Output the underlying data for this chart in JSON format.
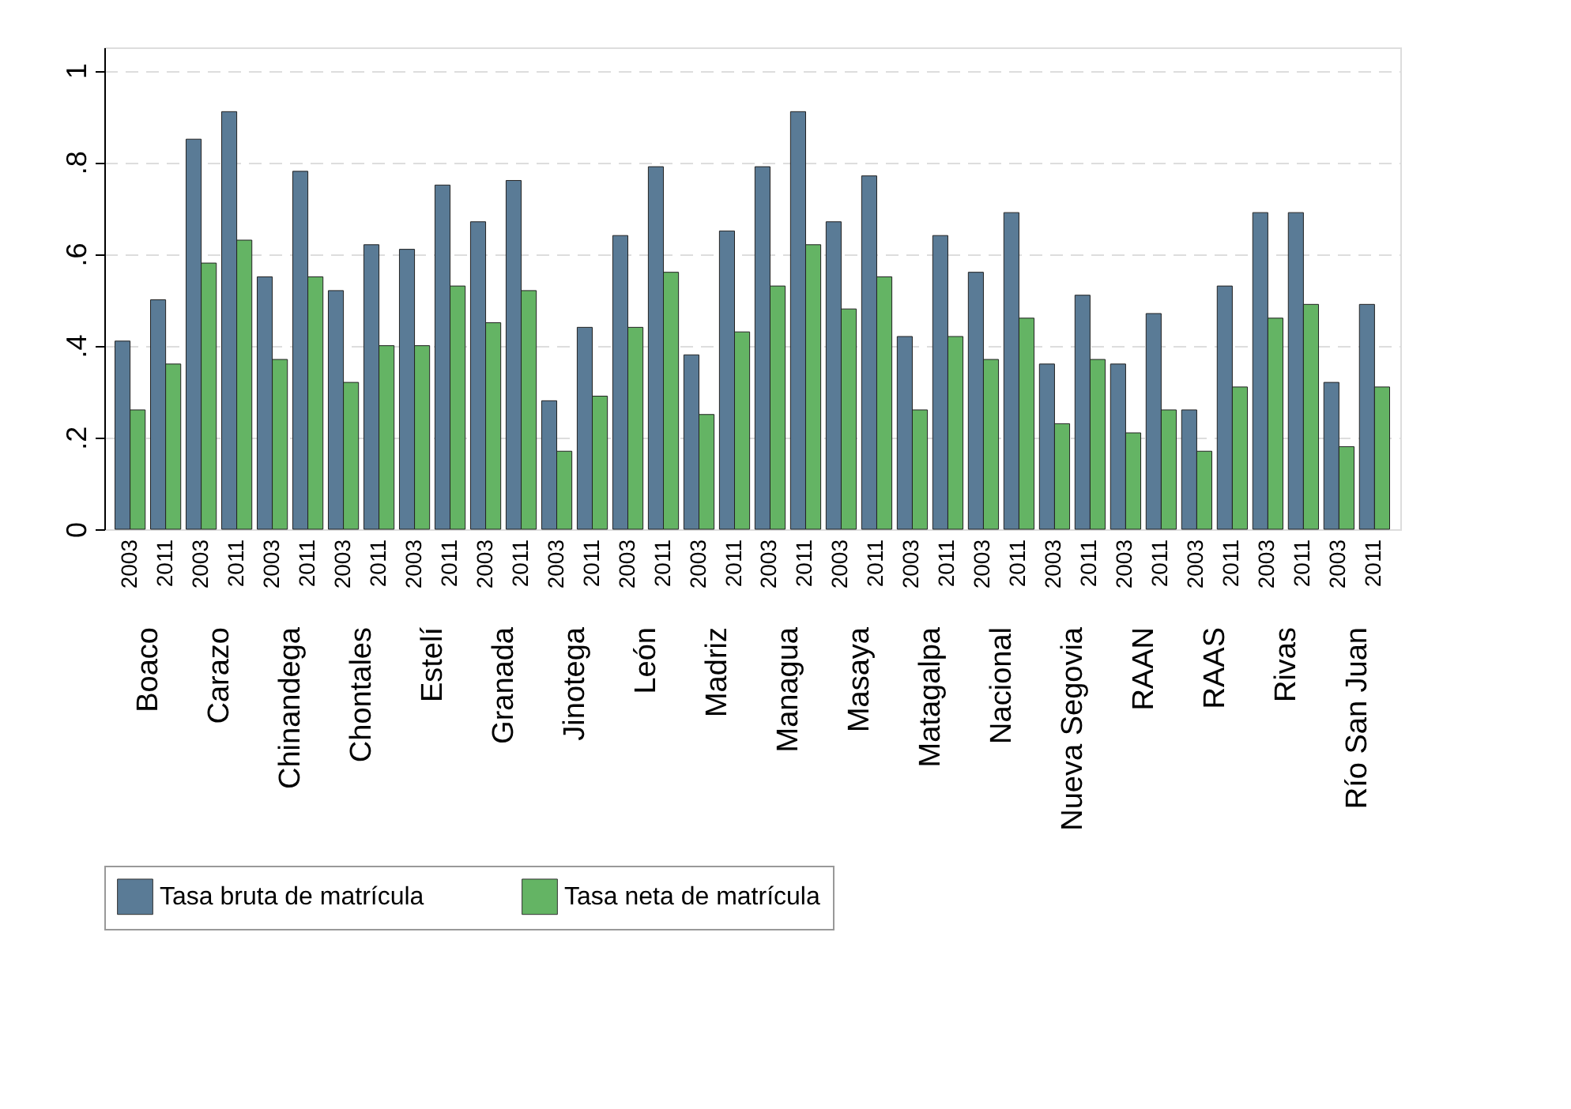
{
  "chart_data": {
    "type": "bar",
    "categories": [
      "2003",
      "2011",
      "2003",
      "2011",
      "2003",
      "2011",
      "2003",
      "2011",
      "2003",
      "2011",
      "2003",
      "2011",
      "2003",
      "2011",
      "2003",
      "2011",
      "2003",
      "2011",
      "2003",
      "2011",
      "2003",
      "2011",
      "2003",
      "2011",
      "2003",
      "2011",
      "2003",
      "2011",
      "2003",
      "2011",
      "2003",
      "2011",
      "2003",
      "2011",
      "2003",
      "2011"
    ],
    "annotations": [
      "Boaco",
      "Carazo",
      "Chinandega",
      "Chontales",
      "Estelí",
      "Granada",
      "Jinotega",
      "León",
      "Madriz",
      "Managua",
      "Masaya",
      "Matagalpa",
      "Nacional",
      "Nueva Segovia",
      "RAAN",
      "RAAS",
      "Rivas",
      "Río San Juan"
    ],
    "series": [
      {
        "name": "Tasa bruta de matrícula",
        "color": "#5a7b96",
        "values": [
          0.41,
          0.5,
          0.85,
          0.91,
          0.55,
          0.78,
          0.52,
          0.62,
          0.61,
          0.75,
          0.67,
          0.76,
          0.28,
          0.44,
          0.64,
          0.79,
          0.38,
          0.65,
          0.79,
          0.91,
          0.67,
          0.77,
          0.42,
          0.64,
          0.56,
          0.69,
          0.36,
          0.51,
          0.36,
          0.47,
          0.26,
          0.53,
          0.69,
          0.69,
          0.32,
          0.49
        ]
      },
      {
        "name": "Tasa neta de matrícula",
        "color": "#64b464",
        "values": [
          0.26,
          0.36,
          0.58,
          0.63,
          0.37,
          0.55,
          0.32,
          0.4,
          0.4,
          0.53,
          0.45,
          0.52,
          0.17,
          0.29,
          0.44,
          0.56,
          0.25,
          0.43,
          0.53,
          0.62,
          0.48,
          0.55,
          0.26,
          0.42,
          0.37,
          0.46,
          0.23,
          0.37,
          0.21,
          0.26,
          0.17,
          0.31,
          0.46,
          0.49,
          0.18,
          0.31
        ]
      }
    ],
    "ylim": [
      0,
      1.05
    ],
    "yticks": [
      0,
      {
        "value": 0.2,
        "label": ".2"
      },
      {
        "value": 0.4,
        "label": ".4"
      },
      {
        "value": 0.6,
        "label": ".6"
      },
      {
        "value": 0.8,
        "label": ".8"
      },
      1
    ],
    "grid": "y",
    "legend": "bottom"
  }
}
